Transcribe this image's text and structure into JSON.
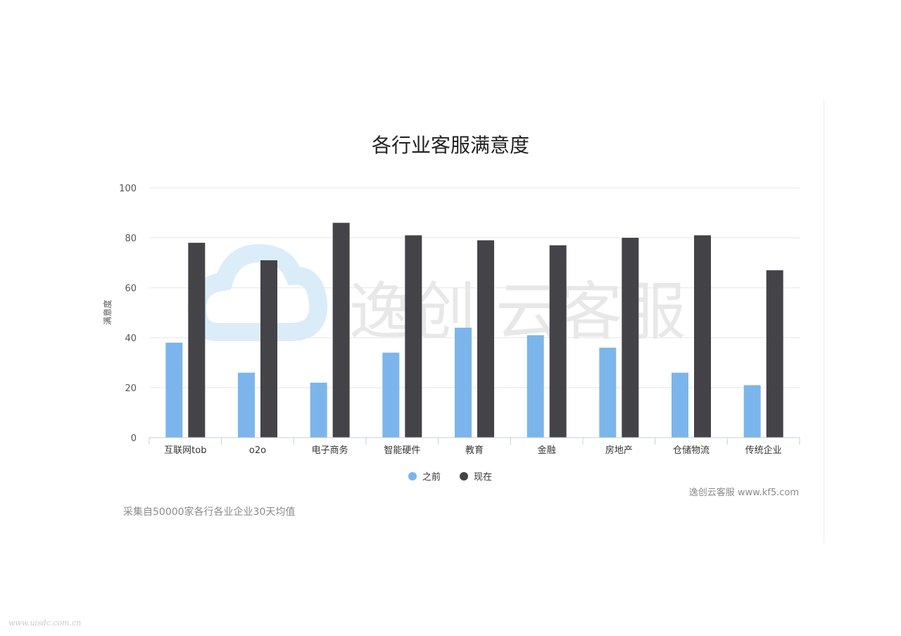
{
  "chart_data": {
    "type": "bar",
    "title": "各行业客服满意度",
    "xlabel": "",
    "ylabel": "满意度",
    "ylim": [
      0,
      100
    ],
    "yticks": [
      "0",
      "20",
      "40",
      "60",
      "80",
      "100"
    ],
    "grid": true,
    "legend_position": "bottom",
    "categories": [
      "互联网tob",
      "o2o",
      "电子商务",
      "智能硬件",
      "教育",
      "金融",
      "房地产",
      "仓储物流",
      "传统企业"
    ],
    "series": [
      {
        "name": "之前",
        "color": "#7cb5ec",
        "values": [
          38,
          26,
          22,
          34,
          44,
          41,
          36,
          26,
          21
        ]
      },
      {
        "name": "现在",
        "color": "#434348",
        "values": [
          78,
          71,
          86,
          81,
          79,
          77,
          80,
          81,
          67
        ]
      }
    ]
  },
  "watermark": {
    "text": "逸创·云客服"
  },
  "credit": "逸创云客服 www.kf5.com",
  "footnote": "采集自50000家各行各业企业30天均值",
  "site_watermark": "www.uisdc.com.cn"
}
